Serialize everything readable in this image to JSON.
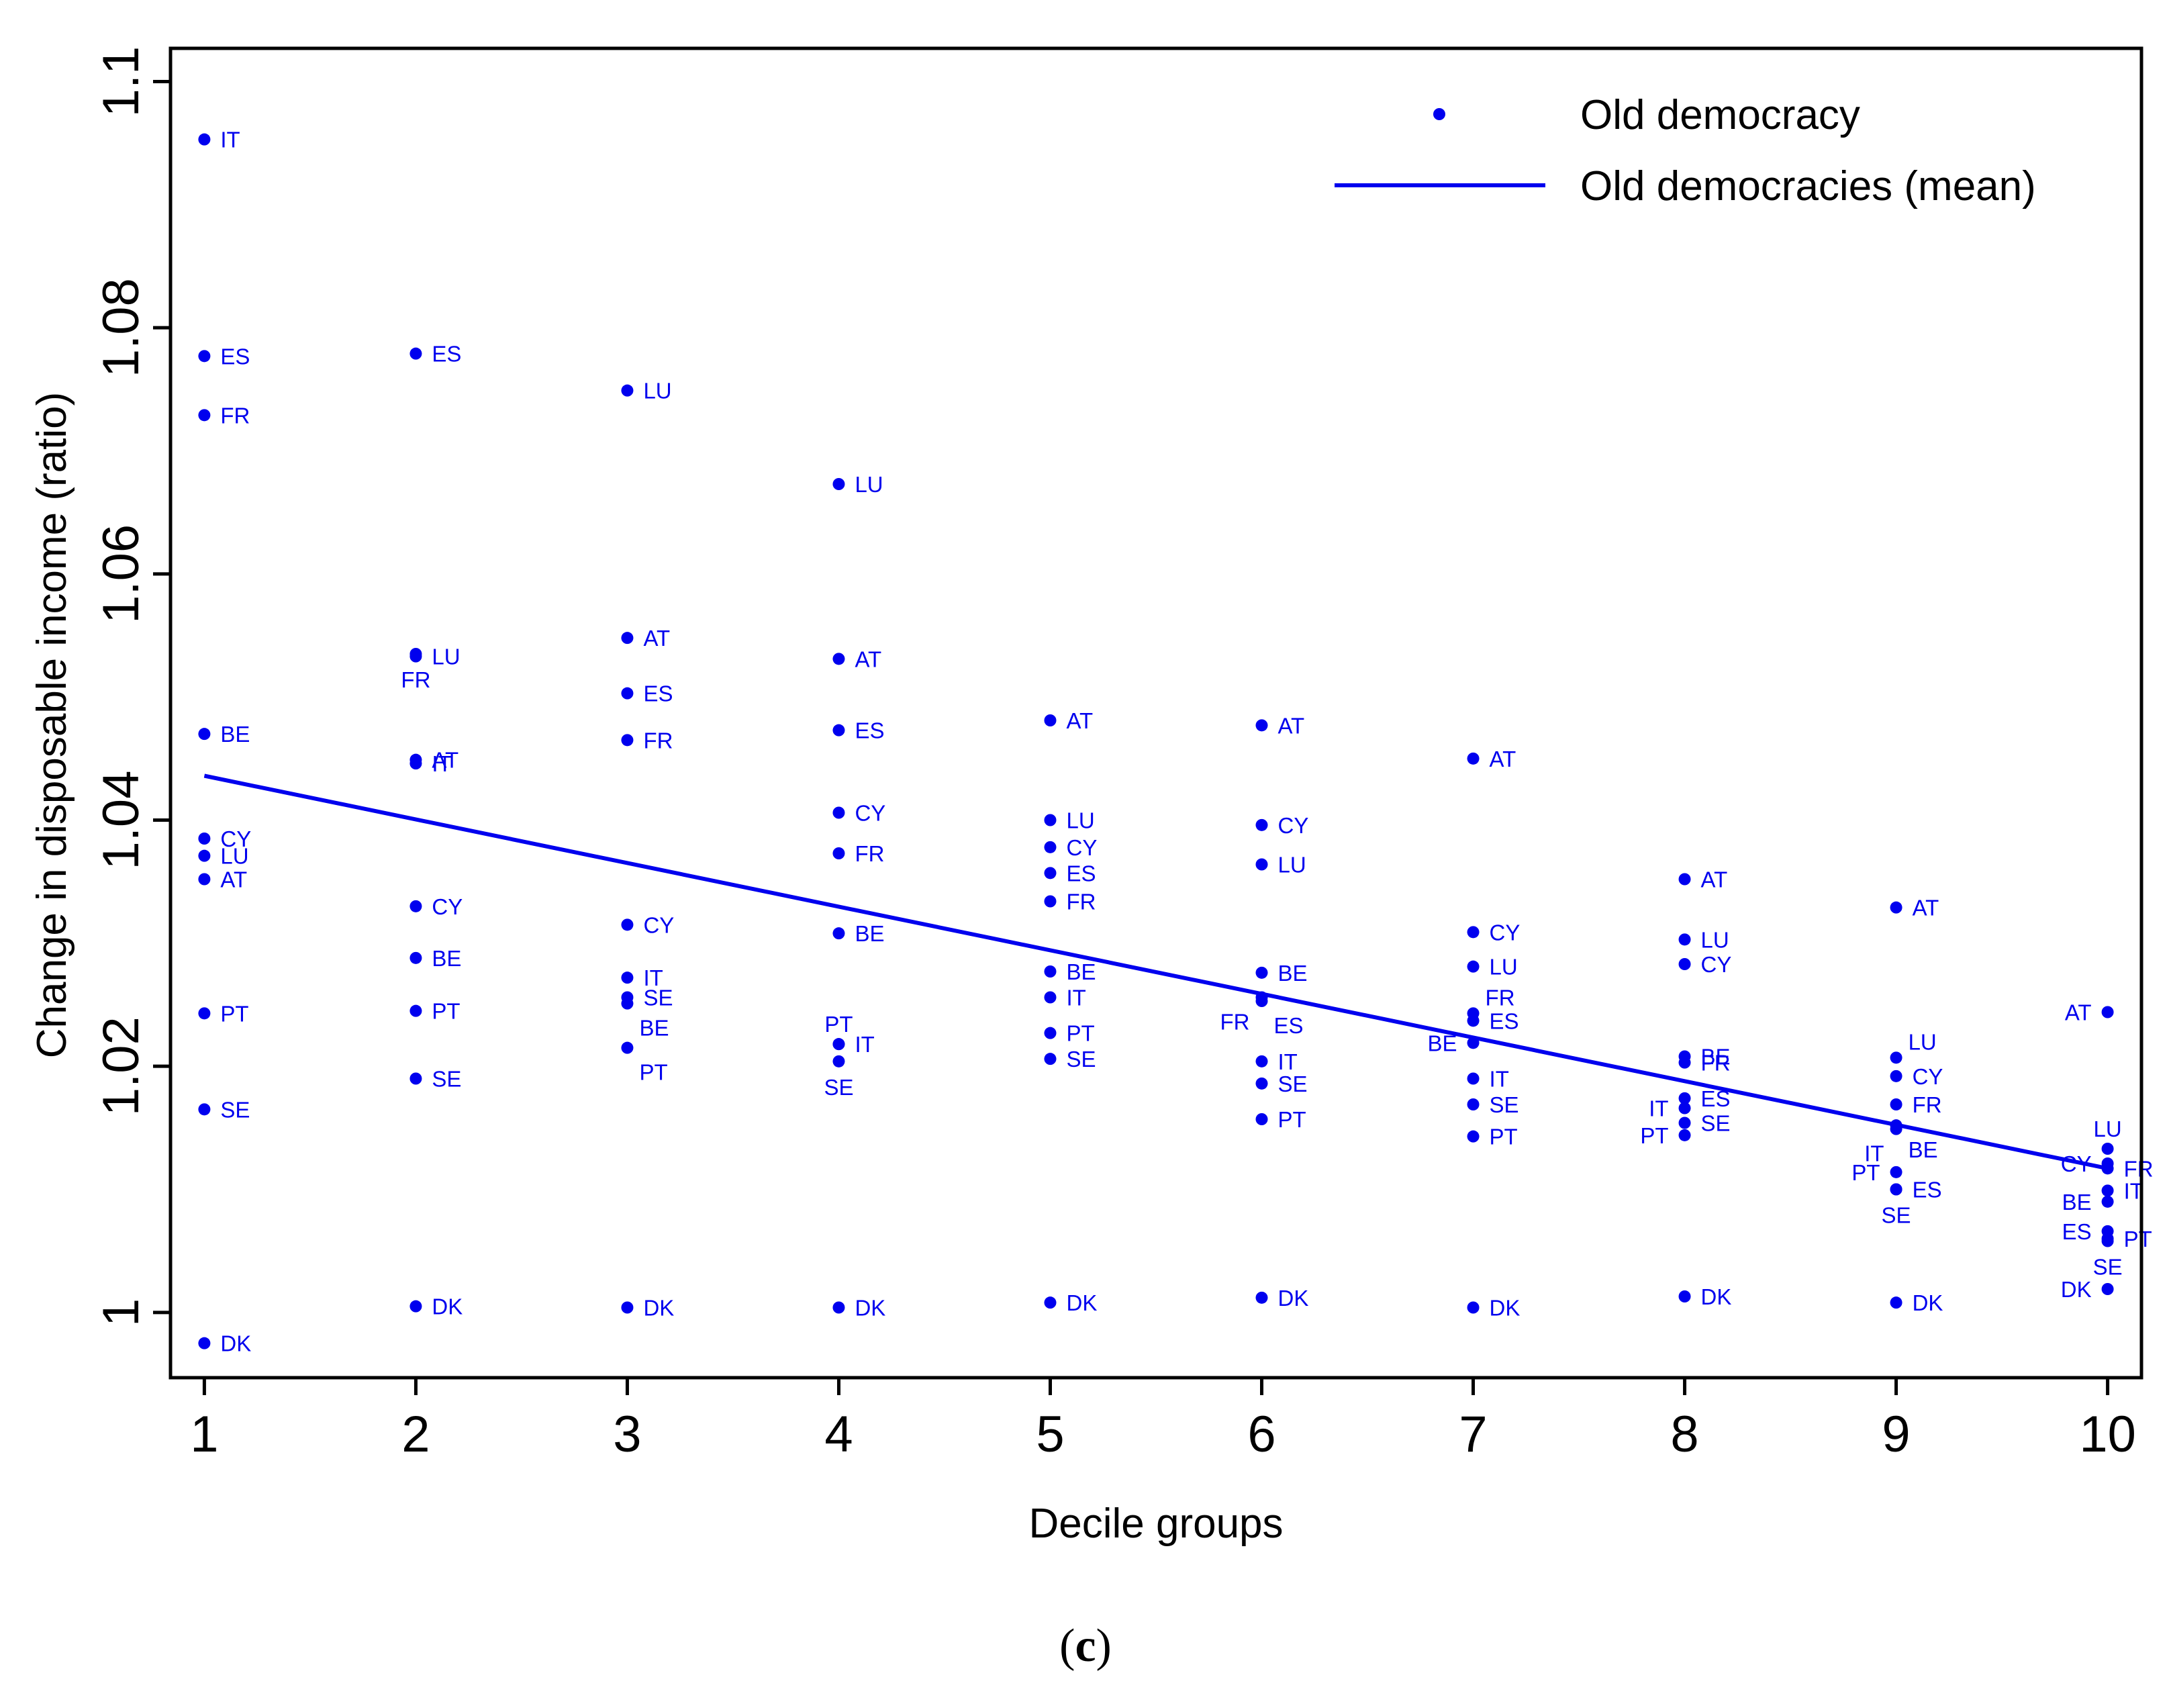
{
  "chart_data": {
    "type": "scatter",
    "title": "",
    "xlabel": "Decile groups",
    "ylabel": "Change in disposable income (ratio)",
    "xlim": [
      0.84,
      10.16
    ],
    "ylim": [
      0.9947,
      1.1027
    ],
    "x_ticks": [
      1,
      2,
      3,
      4,
      5,
      6,
      7,
      8,
      9,
      10
    ],
    "y_ticks": [
      1,
      1.02,
      1.04,
      1.06,
      1.08,
      1.1
    ],
    "y_tick_labels": [
      "1",
      "1.02",
      "1.04",
      "1.06",
      "1.08",
      "1.1"
    ],
    "color": "#0000ee",
    "legend": {
      "position": "top-right",
      "entries": [
        {
          "label": "Old democracy",
          "kind": "point"
        },
        {
          "label": "Old democracies (mean)",
          "kind": "line"
        }
      ]
    },
    "series": [
      {
        "name": "Old democracy",
        "points": [
          {
            "x": 1,
            "y": 1.0953,
            "label": "IT",
            "side": "right"
          },
          {
            "x": 1,
            "y": 1.0777,
            "label": "ES",
            "side": "right"
          },
          {
            "x": 1,
            "y": 1.0729,
            "label": "FR",
            "side": "right"
          },
          {
            "x": 1,
            "y": 1.047,
            "label": "BE",
            "side": "right"
          },
          {
            "x": 1,
            "y": 1.0385,
            "label": "CY",
            "side": "right"
          },
          {
            "x": 1,
            "y": 1.0371,
            "label": "LU",
            "side": "right"
          },
          {
            "x": 1,
            "y": 1.0352,
            "label": "AT",
            "side": "right"
          },
          {
            "x": 1,
            "y": 1.0243,
            "label": "PT",
            "side": "right"
          },
          {
            "x": 1,
            "y": 1.0165,
            "label": "SE",
            "side": "right"
          },
          {
            "x": 1,
            "y": 0.9975,
            "label": "DK",
            "side": "right"
          },
          {
            "x": 2,
            "y": 1.0779,
            "label": "ES",
            "side": "right"
          },
          {
            "x": 2,
            "y": 1.0533,
            "label": "LU",
            "side": "right"
          },
          {
            "x": 2,
            "y": 1.0535,
            "label": "FR",
            "side": "below"
          },
          {
            "x": 2,
            "y": 1.0449,
            "label": "AT",
            "side": "right"
          },
          {
            "x": 2,
            "y": 1.0446,
            "label": "IT",
            "side": "right"
          },
          {
            "x": 2,
            "y": 1.033,
            "label": "CY",
            "side": "right"
          },
          {
            "x": 2,
            "y": 1.0288,
            "label": "BE",
            "side": "right"
          },
          {
            "x": 2,
            "y": 1.0245,
            "label": "PT",
            "side": "right"
          },
          {
            "x": 2,
            "y": 1.019,
            "label": "SE",
            "side": "right"
          },
          {
            "x": 2,
            "y": 1.0005,
            "label": "DK",
            "side": "right"
          },
          {
            "x": 3,
            "y": 1.0749,
            "label": "LU",
            "side": "right"
          },
          {
            "x": 3,
            "y": 1.0548,
            "label": "AT",
            "side": "right"
          },
          {
            "x": 3,
            "y": 1.0503,
            "label": "ES",
            "side": "right"
          },
          {
            "x": 3,
            "y": 1.0465,
            "label": "FR",
            "side": "right"
          },
          {
            "x": 3,
            "y": 1.0315,
            "label": "CY",
            "side": "right"
          },
          {
            "x": 3,
            "y": 1.0272,
            "label": "IT",
            "side": "right"
          },
          {
            "x": 3,
            "y": 1.0256,
            "label": "SE",
            "side": "right"
          },
          {
            "x": 3,
            "y": 1.0251,
            "label": "BE",
            "side": "right-below"
          },
          {
            "x": 3,
            "y": 1.0215,
            "label": "PT",
            "side": "right-below"
          },
          {
            "x": 3,
            "y": 1.0004,
            "label": "DK",
            "side": "right"
          },
          {
            "x": 4,
            "y": 1.0673,
            "label": "LU",
            "side": "right"
          },
          {
            "x": 4,
            "y": 1.0531,
            "label": "AT",
            "side": "right"
          },
          {
            "x": 4,
            "y": 1.0473,
            "label": "ES",
            "side": "right"
          },
          {
            "x": 4,
            "y": 1.0406,
            "label": "CY",
            "side": "right"
          },
          {
            "x": 4,
            "y": 1.0373,
            "label": "FR",
            "side": "right"
          },
          {
            "x": 4,
            "y": 1.0308,
            "label": "BE",
            "side": "right"
          },
          {
            "x": 4,
            "y": 1.0218,
            "label": "IT",
            "side": "right"
          },
          {
            "x": 4,
            "y": 1.0218,
            "label": "PT",
            "side": "above"
          },
          {
            "x": 4,
            "y": 1.0204,
            "label": "SE",
            "side": "below"
          },
          {
            "x": 4,
            "y": 1.0004,
            "label": "DK",
            "side": "right"
          },
          {
            "x": 5,
            "y": 1.0481,
            "label": "AT",
            "side": "right"
          },
          {
            "x": 5,
            "y": 1.04,
            "label": "LU",
            "side": "right"
          },
          {
            "x": 5,
            "y": 1.0378,
            "label": "CY",
            "side": "right"
          },
          {
            "x": 5,
            "y": 1.0357,
            "label": "ES",
            "side": "right"
          },
          {
            "x": 5,
            "y": 1.0334,
            "label": "FR",
            "side": "right"
          },
          {
            "x": 5,
            "y": 1.0277,
            "label": "BE",
            "side": "right"
          },
          {
            "x": 5,
            "y": 1.0256,
            "label": "IT",
            "side": "right"
          },
          {
            "x": 5,
            "y": 1.0227,
            "label": "PT",
            "side": "right"
          },
          {
            "x": 5,
            "y": 1.0206,
            "label": "SE",
            "side": "right"
          },
          {
            "x": 5,
            "y": 1.0008,
            "label": "DK",
            "side": "right"
          },
          {
            "x": 6,
            "y": 1.0477,
            "label": "AT",
            "side": "right"
          },
          {
            "x": 6,
            "y": 1.0396,
            "label": "CY",
            "side": "right"
          },
          {
            "x": 6,
            "y": 1.0364,
            "label": "LU",
            "side": "right"
          },
          {
            "x": 6,
            "y": 1.0276,
            "label": "BE",
            "side": "right"
          },
          {
            "x": 6,
            "y": 1.0256,
            "label": "FR",
            "side": "left-below"
          },
          {
            "x": 6,
            "y": 1.0253,
            "label": "ES",
            "side": "right-below"
          },
          {
            "x": 6,
            "y": 1.0204,
            "label": "IT",
            "side": "right"
          },
          {
            "x": 6,
            "y": 1.0186,
            "label": "SE",
            "side": "right"
          },
          {
            "x": 6,
            "y": 1.0157,
            "label": "PT",
            "side": "right"
          },
          {
            "x": 6,
            "y": 1.0012,
            "label": "DK",
            "side": "right"
          },
          {
            "x": 7,
            "y": 1.045,
            "label": "AT",
            "side": "right"
          },
          {
            "x": 7,
            "y": 1.0309,
            "label": "CY",
            "side": "right"
          },
          {
            "x": 7,
            "y": 1.0281,
            "label": "LU",
            "side": "right"
          },
          {
            "x": 7,
            "y": 1.0243,
            "label": "FR",
            "side": "right-above"
          },
          {
            "x": 7,
            "y": 1.0237,
            "label": "ES",
            "side": "right"
          },
          {
            "x": 7,
            "y": 1.0219,
            "label": "BE",
            "side": "left"
          },
          {
            "x": 7,
            "y": 1.019,
            "label": "IT",
            "side": "right"
          },
          {
            "x": 7,
            "y": 1.0169,
            "label": "SE",
            "side": "right"
          },
          {
            "x": 7,
            "y": 1.0143,
            "label": "PT",
            "side": "right"
          },
          {
            "x": 7,
            "y": 1.0004,
            "label": "DK",
            "side": "right"
          },
          {
            "x": 8,
            "y": 1.0352,
            "label": "AT",
            "side": "right"
          },
          {
            "x": 8,
            "y": 1.0303,
            "label": "LU",
            "side": "right"
          },
          {
            "x": 8,
            "y": 1.0283,
            "label": "CY",
            "side": "right"
          },
          {
            "x": 8,
            "y": 1.0208,
            "label": "BE",
            "side": "right"
          },
          {
            "x": 8,
            "y": 1.0203,
            "label": "FR",
            "side": "right"
          },
          {
            "x": 8,
            "y": 1.0174,
            "label": "ES",
            "side": "right"
          },
          {
            "x": 8,
            "y": 1.0166,
            "label": "IT",
            "side": "left"
          },
          {
            "x": 8,
            "y": 1.0154,
            "label": "SE",
            "side": "right"
          },
          {
            "x": 8,
            "y": 1.0144,
            "label": "PT",
            "side": "left"
          },
          {
            "x": 8,
            "y": 1.0013,
            "label": "DK",
            "side": "right"
          },
          {
            "x": 9,
            "y": 1.0329,
            "label": "AT",
            "side": "right"
          },
          {
            "x": 9,
            "y": 1.0207,
            "label": "LU",
            "side": "right-above"
          },
          {
            "x": 9,
            "y": 1.0192,
            "label": "CY",
            "side": "right"
          },
          {
            "x": 9,
            "y": 1.0169,
            "label": "FR",
            "side": "right"
          },
          {
            "x": 9,
            "y": 1.0152,
            "label": "BE",
            "side": "right-below"
          },
          {
            "x": 9,
            "y": 1.0149,
            "label": "IT",
            "side": "left-below"
          },
          {
            "x": 9,
            "y": 1.0114,
            "label": "PT",
            "side": "left"
          },
          {
            "x": 9,
            "y": 1.01,
            "label": "ES",
            "side": "right"
          },
          {
            "x": 9,
            "y": 1.01,
            "label": "SE",
            "side": "below"
          },
          {
            "x": 9,
            "y": 1.0008,
            "label": "DK",
            "side": "right"
          },
          {
            "x": 10,
            "y": 1.0244,
            "label": "AT",
            "side": "left"
          },
          {
            "x": 10,
            "y": 1.0133,
            "label": "LU",
            "side": "above"
          },
          {
            "x": 10,
            "y": 1.0121,
            "label": "CY",
            "side": "left"
          },
          {
            "x": 10,
            "y": 1.0117,
            "label": "FR",
            "side": "right"
          },
          {
            "x": 10,
            "y": 1.0099,
            "label": "IT",
            "side": "right"
          },
          {
            "x": 10,
            "y": 1.009,
            "label": "BE",
            "side": "left"
          },
          {
            "x": 10,
            "y": 1.0066,
            "label": "ES",
            "side": "left"
          },
          {
            "x": 10,
            "y": 1.006,
            "label": "PT",
            "side": "right"
          },
          {
            "x": 10,
            "y": 1.0058,
            "label": "SE",
            "side": "below"
          },
          {
            "x": 10,
            "y": 1.0019,
            "label": "DK",
            "side": "left"
          }
        ]
      },
      {
        "name": "Old democracies (mean)",
        "type": "line",
        "x": [
          1,
          10
        ],
        "y": [
          1.0436,
          1.0117
        ]
      }
    ]
  },
  "caption": {
    "open": "(",
    "letter": "c",
    "close": ")"
  }
}
